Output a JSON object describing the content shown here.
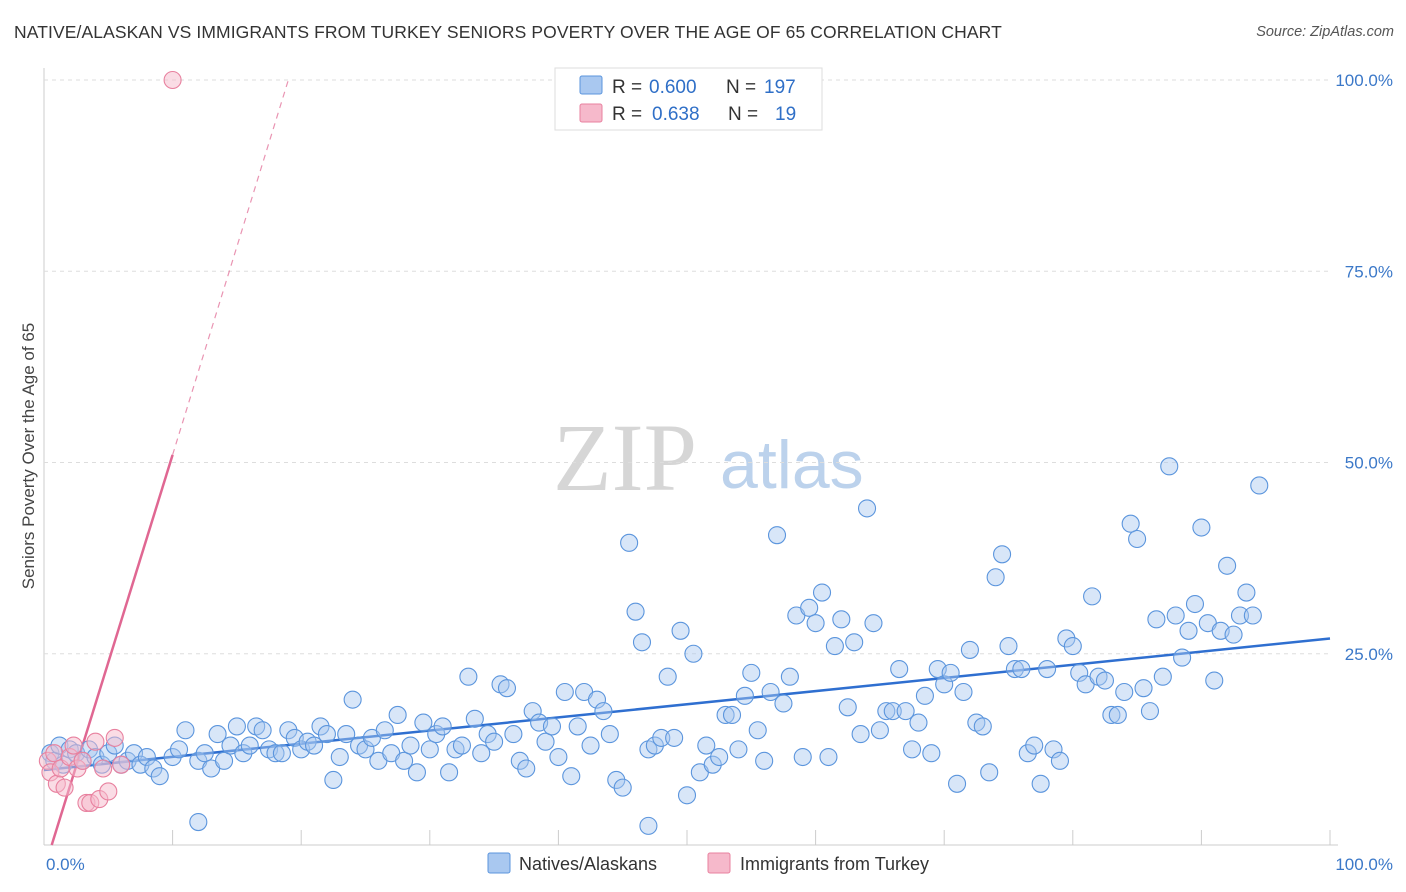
{
  "header": {
    "title": "NATIVE/ALASKAN VS IMMIGRANTS FROM TURKEY SENIORS POVERTY OVER THE AGE OF 65 CORRELATION CHART",
    "source": "Source: ZipAtlas.com"
  },
  "watermark": {
    "zip": "ZIP",
    "atlas": "atlas"
  },
  "legend_top": {
    "rows": [
      {
        "r_label": "R =",
        "r_value": "0.600",
        "n_label": "N =",
        "n_value": "197",
        "color": "#a9c8f0"
      },
      {
        "r_label": "R =",
        "r_value": "0.638",
        "n_label": "N =",
        "n_value": "19",
        "color": "#f6b9cb"
      }
    ]
  },
  "legend_bottom": {
    "items": [
      {
        "label": "Natives/Alaskans",
        "color": "#a9c8f0"
      },
      {
        "label": "Immigrants from Turkey",
        "color": "#f6b9cb"
      }
    ]
  },
  "colors": {
    "blue_fill": "#a9c8f0",
    "blue_stroke": "#5b95dd",
    "blue_line": "#2f6fd0",
    "pink_fill": "#f6b9cb",
    "pink_stroke": "#e8819f",
    "pink_line": "#e06792",
    "tick_text": "#3b78c8",
    "grid": "#dddddd"
  },
  "chart_data": {
    "type": "scatter",
    "title": "NATIVE/ALASKAN VS IMMIGRANTS FROM TURKEY SENIORS POVERTY OVER THE AGE OF 65 CORRELATION CHART",
    "xlabel": "",
    "ylabel": "Seniors Poverty Over the Age of 65",
    "xlim": [
      0,
      100
    ],
    "ylim": [
      0,
      100
    ],
    "x_tick_labels": [
      "0.0%",
      "100.0%"
    ],
    "y_tick_labels": [
      "25.0%",
      "50.0%",
      "75.0%",
      "100.0%"
    ],
    "y_ticks": [
      25,
      50,
      75,
      100
    ],
    "grid": true,
    "legend_position": "top-center",
    "series": [
      {
        "name": "Natives/Alaskans",
        "R": 0.6,
        "N": 197,
        "trend": {
          "x": [
            0,
            100
          ],
          "y": [
            9.8,
            27.0
          ]
        },
        "points": [
          [
            0.5,
            12
          ],
          [
            0.8,
            11
          ],
          [
            1.2,
            13
          ],
          [
            1.5,
            10.5
          ],
          [
            2,
            12.5
          ],
          [
            2.5,
            12
          ],
          [
            3,
            11
          ],
          [
            3.5,
            12.5
          ],
          [
            4,
            11.5
          ],
          [
            4.5,
            10.5
          ],
          [
            5,
            12
          ],
          [
            5.5,
            13
          ],
          [
            6,
            10.5
          ],
          [
            6.5,
            11
          ],
          [
            7,
            12
          ],
          [
            7.5,
            10.5
          ],
          [
            8,
            11.5
          ],
          [
            8.5,
            10
          ],
          [
            9,
            9
          ],
          [
            10,
            11.5
          ],
          [
            10.5,
            12.5
          ],
          [
            11,
            15
          ],
          [
            12,
            11
          ],
          [
            12.5,
            12
          ],
          [
            13,
            10
          ],
          [
            13.5,
            14.5
          ],
          [
            14,
            11
          ],
          [
            14.5,
            13
          ],
          [
            15,
            15.5
          ],
          [
            15.5,
            12
          ],
          [
            16,
            13
          ],
          [
            16.5,
            15.5
          ],
          [
            17,
            15
          ],
          [
            17.5,
            12.5
          ],
          [
            18,
            12
          ],
          [
            18.5,
            12
          ],
          [
            19,
            15
          ],
          [
            19.5,
            14
          ],
          [
            20,
            12.5
          ],
          [
            20.5,
            13.5
          ],
          [
            21,
            13
          ],
          [
            21.5,
            15.5
          ],
          [
            22,
            14.5
          ],
          [
            22.5,
            8.5
          ],
          [
            23,
            11.5
          ],
          [
            23.5,
            14.5
          ],
          [
            24,
            19
          ],
          [
            24.5,
            13
          ],
          [
            25,
            12.5
          ],
          [
            25.5,
            14
          ],
          [
            26,
            11
          ],
          [
            26.5,
            15
          ],
          [
            27,
            12
          ],
          [
            27.5,
            17
          ],
          [
            28,
            11
          ],
          [
            28.5,
            13
          ],
          [
            29,
            9.5
          ],
          [
            29.5,
            16
          ],
          [
            30,
            12.5
          ],
          [
            30.5,
            14.5
          ],
          [
            31,
            15.5
          ],
          [
            31.5,
            9.5
          ],
          [
            32,
            12.5
          ],
          [
            32.5,
            13
          ],
          [
            33,
            22
          ],
          [
            33.5,
            16.5
          ],
          [
            34,
            12
          ],
          [
            34.5,
            14.5
          ],
          [
            35,
            13.5
          ],
          [
            35.5,
            21
          ],
          [
            36,
            20.5
          ],
          [
            36.5,
            14.5
          ],
          [
            37,
            11
          ],
          [
            37.5,
            10
          ],
          [
            38,
            17.5
          ],
          [
            38.5,
            16
          ],
          [
            39,
            13.5
          ],
          [
            39.5,
            15.5
          ],
          [
            40,
            11.5
          ],
          [
            40.5,
            20
          ],
          [
            41,
            9
          ],
          [
            41.5,
            15.5
          ],
          [
            42,
            20
          ],
          [
            42.5,
            13
          ],
          [
            43,
            19
          ],
          [
            43.5,
            17.5
          ],
          [
            44,
            14.5
          ],
          [
            44.5,
            8.5
          ],
          [
            45,
            7.5
          ],
          [
            45.5,
            39.5
          ],
          [
            46,
            30.5
          ],
          [
            46.5,
            26.5
          ],
          [
            47,
            12.5
          ],
          [
            47.5,
            13
          ],
          [
            48,
            14
          ],
          [
            48.5,
            22
          ],
          [
            49,
            14
          ],
          [
            49.5,
            28
          ],
          [
            50,
            6.5
          ],
          [
            50.5,
            25
          ],
          [
            51,
            9.5
          ],
          [
            51.5,
            13
          ],
          [
            52,
            10.5
          ],
          [
            52.5,
            11.5
          ],
          [
            53,
            17
          ],
          [
            53.5,
            17
          ],
          [
            54,
            12.5
          ],
          [
            54.5,
            19.5
          ],
          [
            55,
            22.5
          ],
          [
            55.5,
            15
          ],
          [
            56,
            11
          ],
          [
            56.5,
            20
          ],
          [
            57,
            40.5
          ],
          [
            57.5,
            18.5
          ],
          [
            58,
            22
          ],
          [
            58.5,
            30
          ],
          [
            59,
            11.5
          ],
          [
            59.5,
            31
          ],
          [
            60,
            29
          ],
          [
            60.5,
            33
          ],
          [
            61,
            11.5
          ],
          [
            61.5,
            26
          ],
          [
            62,
            29.5
          ],
          [
            62.5,
            18
          ],
          [
            63,
            26.5
          ],
          [
            63.5,
            14.5
          ],
          [
            64,
            44
          ],
          [
            64.5,
            29
          ],
          [
            65,
            15
          ],
          [
            65.5,
            17.5
          ],
          [
            66,
            17.5
          ],
          [
            66.5,
            23
          ],
          [
            67,
            17.5
          ],
          [
            67.5,
            12.5
          ],
          [
            68,
            16
          ],
          [
            68.5,
            19.5
          ],
          [
            69,
            12
          ],
          [
            69.5,
            23
          ],
          [
            70,
            21
          ],
          [
            70.5,
            22.5
          ],
          [
            71,
            8
          ],
          [
            71.5,
            20
          ],
          [
            72,
            25.5
          ],
          [
            72.5,
            16
          ],
          [
            73,
            15.5
          ],
          [
            73.5,
            9.5
          ],
          [
            74,
            35
          ],
          [
            74.5,
            38
          ],
          [
            75,
            26
          ],
          [
            75.5,
            23
          ],
          [
            76,
            23
          ],
          [
            76.5,
            12
          ],
          [
            77,
            13
          ],
          [
            77.5,
            8
          ],
          [
            78,
            23
          ],
          [
            78.5,
            12.5
          ],
          [
            79,
            11
          ],
          [
            79.5,
            27
          ],
          [
            80,
            26
          ],
          [
            80.5,
            22.5
          ],
          [
            81,
            21
          ],
          [
            81.5,
            32.5
          ],
          [
            82,
            22
          ],
          [
            82.5,
            21.5
          ],
          [
            83,
            17
          ],
          [
            83.5,
            17
          ],
          [
            84,
            20
          ],
          [
            84.5,
            42
          ],
          [
            85,
            40
          ],
          [
            85.5,
            20.5
          ],
          [
            86,
            17.5
          ],
          [
            86.5,
            29.5
          ],
          [
            87,
            22
          ],
          [
            87.5,
            49.5
          ],
          [
            88,
            30
          ],
          [
            88.5,
            24.5
          ],
          [
            89,
            28
          ],
          [
            89.5,
            31.5
          ],
          [
            90,
            41.5
          ],
          [
            90.5,
            29
          ],
          [
            91,
            21.5
          ],
          [
            91.5,
            28
          ],
          [
            92,
            36.5
          ],
          [
            92.5,
            27.5
          ],
          [
            93,
            30
          ],
          [
            93.5,
            33
          ],
          [
            94,
            30
          ],
          [
            94.5,
            47
          ],
          [
            12,
            3
          ],
          [
            47,
            2.5
          ]
        ]
      },
      {
        "name": "Immigrants from Turkey",
        "R": 0.638,
        "N": 19,
        "trend": {
          "x": [
            0.6,
            10
          ],
          "y": [
            0,
            51
          ]
        },
        "trend_extended": {
          "x": [
            10,
            19
          ],
          "y": [
            51,
            100
          ]
        },
        "points": [
          [
            0.3,
            11
          ],
          [
            0.5,
            9.5
          ],
          [
            0.8,
            12
          ],
          [
            1,
            8
          ],
          [
            1.3,
            10
          ],
          [
            1.6,
            7.5
          ],
          [
            2,
            11.5
          ],
          [
            2.3,
            13
          ],
          [
            2.6,
            10
          ],
          [
            3,
            11
          ],
          [
            3.3,
            5.5
          ],
          [
            3.6,
            5.5
          ],
          [
            4,
            13.5
          ],
          [
            4.3,
            6
          ],
          [
            4.6,
            10
          ],
          [
            5,
            7
          ],
          [
            5.5,
            14
          ],
          [
            6,
            10.5
          ],
          [
            10,
            100
          ]
        ]
      }
    ]
  }
}
